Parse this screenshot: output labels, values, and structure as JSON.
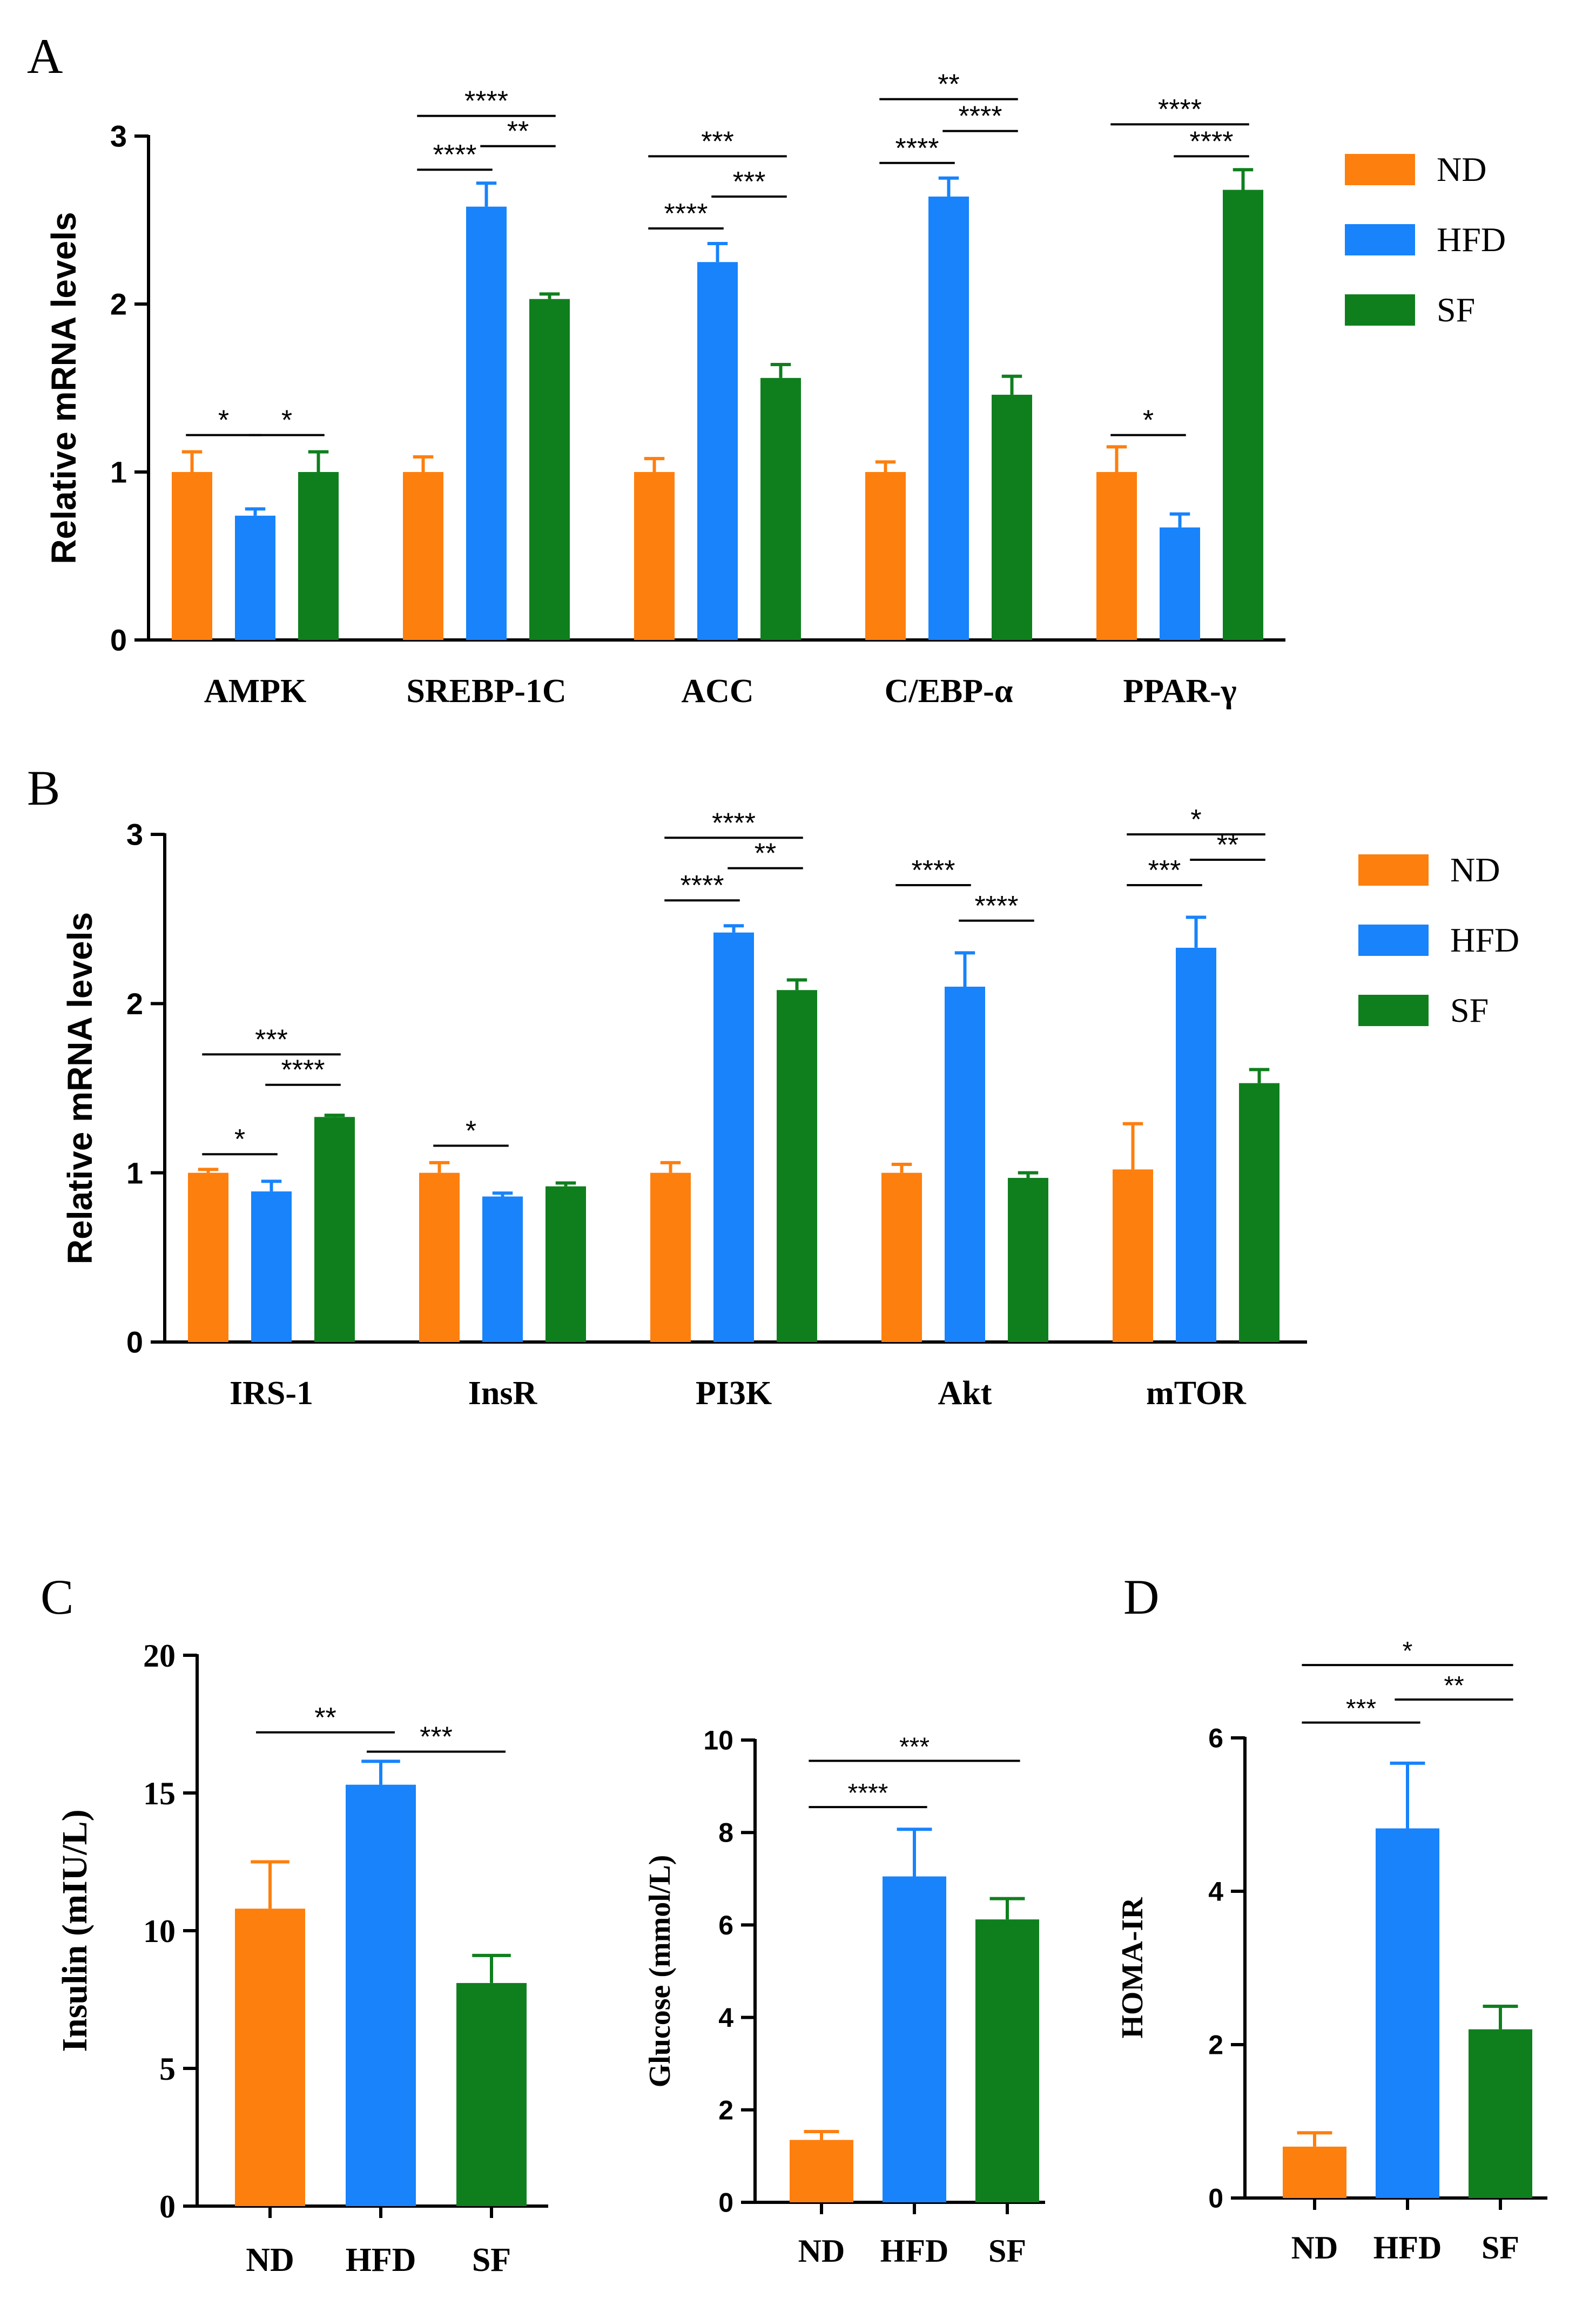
{
  "colors": {
    "ND": "#fd7f0e",
    "HFD": "#1883fb",
    "SF": "#0f7f1e"
  },
  "legend_A": [
    "ND",
    "HFD",
    "SF"
  ],
  "legend_B": [
    "ND",
    "HFD",
    "SF"
  ],
  "chart_data": [
    {
      "panel": "A",
      "type": "bar",
      "ylabel": "Relative mRNA levels",
      "ylim": [
        0,
        3
      ],
      "yticks": [
        "0",
        "1",
        "2",
        "3"
      ],
      "categories": [
        "AMPK",
        "SREBP-1C",
        "ACC",
        "C/EBP-α",
        "PPAR-γ"
      ],
      "series": [
        {
          "name": "ND",
          "values": [
            1.0,
            1.0,
            1.0,
            1.0,
            1.0
          ],
          "errors": [
            0.12,
            0.09,
            0.08,
            0.06,
            0.15
          ]
        },
        {
          "name": "HFD",
          "values": [
            0.74,
            2.58,
            2.25,
            2.64,
            0.67
          ],
          "errors": [
            0.04,
            0.14,
            0.11,
            0.11,
            0.08
          ]
        },
        {
          "name": "SF",
          "values": [
            1.0,
            2.03,
            1.56,
            1.46,
            2.68
          ],
          "errors": [
            0.12,
            0.03,
            0.08,
            0.11,
            0.12
          ]
        }
      ],
      "significance": [
        {
          "cat": 0,
          "from": 0,
          "to": 1,
          "label": "*",
          "level": 1.22
        },
        {
          "cat": 0,
          "from": 1,
          "to": 2,
          "label": "*",
          "level": 1.22
        },
        {
          "cat": 1,
          "from": 0,
          "to": 1,
          "label": "****",
          "level": 2.8
        },
        {
          "cat": 1,
          "from": 1,
          "to": 2,
          "label": "**",
          "level": 2.94
        },
        {
          "cat": 1,
          "from": 0,
          "to": 2,
          "label": "****",
          "level": 3.12
        },
        {
          "cat": 2,
          "from": 0,
          "to": 1,
          "label": "****",
          "level": 2.45
        },
        {
          "cat": 2,
          "from": 1,
          "to": 2,
          "label": "***",
          "level": 2.64
        },
        {
          "cat": 2,
          "from": 0,
          "to": 2,
          "label": "***",
          "level": 2.88
        },
        {
          "cat": 3,
          "from": 0,
          "to": 1,
          "label": "****",
          "level": 2.84
        },
        {
          "cat": 3,
          "from": 1,
          "to": 2,
          "label": "****",
          "level": 3.03
        },
        {
          "cat": 3,
          "from": 0,
          "to": 2,
          "label": "**",
          "level": 3.22
        },
        {
          "cat": 4,
          "from": 0,
          "to": 1,
          "label": "*",
          "level": 1.22
        },
        {
          "cat": 4,
          "from": 1,
          "to": 2,
          "label": "****",
          "level": 2.88
        },
        {
          "cat": 4,
          "from": 0,
          "to": 2,
          "label": "****",
          "level": 3.07
        }
      ]
    },
    {
      "panel": "B",
      "type": "bar",
      "ylabel": "Relative mRNA levels",
      "ylim": [
        0,
        3
      ],
      "yticks": [
        "0",
        "1",
        "2",
        "3"
      ],
      "categories": [
        "IRS-1",
        "InsR",
        "PI3K",
        "Akt",
        "mTOR"
      ],
      "series": [
        {
          "name": "ND",
          "values": [
            1.0,
            1.0,
            1.0,
            1.0,
            1.02
          ],
          "errors": [
            0.02,
            0.06,
            0.06,
            0.05,
            0.27
          ]
        },
        {
          "name": "HFD",
          "values": [
            0.89,
            0.86,
            2.42,
            2.1,
            2.33
          ],
          "errors": [
            0.06,
            0.02,
            0.04,
            0.2,
            0.18
          ]
        },
        {
          "name": "SF",
          "values": [
            1.33,
            0.92,
            2.08,
            0.97,
            1.53
          ],
          "errors": [
            0.01,
            0.02,
            0.06,
            0.03,
            0.08
          ]
        }
      ],
      "significance": [
        {
          "cat": 0,
          "from": 0,
          "to": 1,
          "label": "*",
          "level": 1.11
        },
        {
          "cat": 0,
          "from": 1,
          "to": 2,
          "label": "****",
          "level": 1.52
        },
        {
          "cat": 0,
          "from": 0,
          "to": 2,
          "label": "***",
          "level": 1.7
        },
        {
          "cat": 1,
          "from": 0,
          "to": 1,
          "label": "*",
          "level": 1.16
        },
        {
          "cat": 2,
          "from": 0,
          "to": 1,
          "label": "****",
          "level": 2.61
        },
        {
          "cat": 2,
          "from": 1,
          "to": 2,
          "label": "**",
          "level": 2.8
        },
        {
          "cat": 2,
          "from": 0,
          "to": 2,
          "label": "****",
          "level": 2.98
        },
        {
          "cat": 3,
          "from": 0,
          "to": 1,
          "label": "****",
          "level": 2.7
        },
        {
          "cat": 3,
          "from": 1,
          "to": 2,
          "label": "****",
          "level": 2.49
        },
        {
          "cat": 4,
          "from": 0,
          "to": 1,
          "label": "***",
          "level": 2.7
        },
        {
          "cat": 4,
          "from": 1,
          "to": 2,
          "label": "**",
          "level": 2.85
        },
        {
          "cat": 4,
          "from": 0,
          "to": 2,
          "label": "*",
          "level": 3.0
        }
      ]
    },
    {
      "panel": "C",
      "type": "bar",
      "ylabel": "Insulin (mIU/L)",
      "ylim": [
        0,
        20
      ],
      "yticks": [
        "0",
        "5",
        "10",
        "15",
        "20"
      ],
      "categories": [
        "ND",
        "HFD",
        "SF"
      ],
      "values": [
        10.8,
        15.3,
        8.1
      ],
      "errors": [
        1.7,
        0.85,
        1.0
      ],
      "significance": [
        {
          "from": 0,
          "to": 1,
          "label": "**",
          "level": 17.2
        },
        {
          "from": 1,
          "to": 2,
          "label": "***",
          "level": 16.5
        }
      ]
    },
    {
      "panel": "C-glucose",
      "type": "bar",
      "ylabel": "Glucose (mmol/L)",
      "ylim": [
        0,
        10
      ],
      "yticks": [
        "0",
        "2",
        "4",
        "6",
        "8",
        "10"
      ],
      "categories": [
        "ND",
        "HFD",
        "SF"
      ],
      "values": [
        1.35,
        7.05,
        6.12
      ],
      "errors": [
        0.18,
        1.02,
        0.45
      ],
      "significance": [
        {
          "from": 0,
          "to": 1,
          "label": "****",
          "level": 8.55
        },
        {
          "from": 0,
          "to": 2,
          "label": "***",
          "level": 9.55
        }
      ]
    },
    {
      "panel": "D",
      "type": "bar",
      "ylabel": "HOMA-IR",
      "ylim": [
        0,
        6
      ],
      "yticks": [
        "0",
        "2",
        "4",
        "6"
      ],
      "categories": [
        "ND",
        "HFD",
        "SF"
      ],
      "values": [
        0.67,
        4.82,
        2.2
      ],
      "errors": [
        0.18,
        0.85,
        0.3
      ],
      "significance": [
        {
          "from": 0,
          "to": 1,
          "label": "***",
          "level": 6.2
        },
        {
          "from": 1,
          "to": 2,
          "label": "**",
          "level": 6.5
        },
        {
          "from": 0,
          "to": 2,
          "label": "*",
          "level": 6.95
        }
      ]
    }
  ],
  "panel_labels": {
    "A": "A",
    "B": "B",
    "C": "C",
    "D": "D"
  }
}
